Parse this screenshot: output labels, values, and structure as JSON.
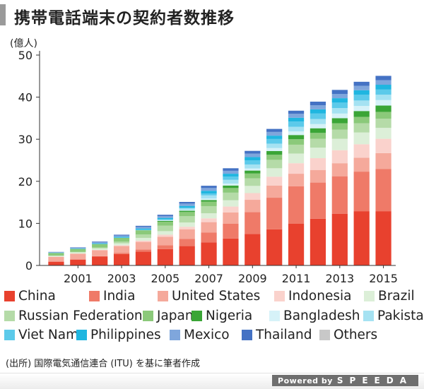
{
  "title": "携帯電話端末の契約者数推移",
  "source": "(出所) 国際電気通信連合 (ITU) を基に筆者作成",
  "footer": {
    "powered_by": "Powered by",
    "brand": "SPEEDA"
  },
  "legend_layout": [
    [
      "China",
      "India",
      "United States",
      "Indonesia",
      "Brazil"
    ],
    [
      "Russian Federation",
      "Japan",
      "Nigeria",
      "Bangladesh",
      "Pakistan"
    ],
    [
      "Viet Nam",
      "Philippines",
      "Mexico",
      "Thailand",
      "Others"
    ]
  ],
  "chart_data": {
    "type": "bar",
    "stacked": true,
    "title": "携帯電話端末の契約者数推移",
    "ylabel": "(億人)",
    "xlabel": "",
    "ylim": [
      0,
      50
    ],
    "yticks": [
      0,
      10,
      20,
      30,
      40,
      50
    ],
    "grid": false,
    "legend_position": "bottom",
    "categories": [
      "2000",
      "2001",
      "2002",
      "2003",
      "2004",
      "2005",
      "2006",
      "2007",
      "2008",
      "2009",
      "2010",
      "2011",
      "2012",
      "2013",
      "2014",
      "2015"
    ],
    "xtick_labels": [
      "2001",
      "2003",
      "2005",
      "2007",
      "2009",
      "2011",
      "2013",
      "2015"
    ],
    "series": [
      {
        "name": "China",
        "color": "#e8412e",
        "values": [
          0.9,
          1.4,
          2.1,
          2.7,
          3.3,
          3.9,
          4.6,
          5.5,
          6.4,
          7.5,
          8.6,
          9.9,
          11.1,
          12.3,
          12.9,
          12.9
        ]
      },
      {
        "name": "India",
        "color": "#ef7a68",
        "values": [
          0.05,
          0.07,
          0.1,
          0.3,
          0.5,
          0.9,
          1.7,
          2.3,
          3.5,
          5.2,
          7.5,
          8.9,
          8.6,
          8.9,
          9.4,
          10.0
        ]
      },
      {
        "name": "United States",
        "color": "#f5a99b",
        "values": [
          1.1,
          1.3,
          1.4,
          1.6,
          1.8,
          2.0,
          2.3,
          2.5,
          2.7,
          2.9,
          2.9,
          3.0,
          3.0,
          3.1,
          3.3,
          3.8
        ]
      },
      {
        "name": "Indonesia",
        "color": "#fad2cc",
        "values": [
          0.04,
          0.06,
          0.1,
          0.2,
          0.3,
          0.5,
          0.6,
          0.9,
          1.4,
          1.6,
          2.1,
          2.5,
          2.8,
          3.1,
          3.2,
          3.4
        ]
      },
      {
        "name": "Brazil",
        "color": "#dcefd8",
        "values": [
          0.2,
          0.3,
          0.35,
          0.45,
          0.65,
          0.85,
          1.0,
          1.2,
          1.5,
          1.7,
          2.0,
          2.3,
          2.5,
          2.7,
          2.8,
          2.6
        ]
      },
      {
        "name": "Russian Federation",
        "color": "#b5dba8",
        "values": [
          0.03,
          0.08,
          0.2,
          0.4,
          0.8,
          1.3,
          1.5,
          1.7,
          1.8,
          1.8,
          2.0,
          2.1,
          2.1,
          2.2,
          2.2,
          2.2
        ]
      },
      {
        "name": "Japan",
        "color": "#8bc97a",
        "values": [
          0.65,
          0.7,
          0.8,
          0.85,
          0.9,
          0.95,
          1.0,
          1.05,
          1.1,
          1.15,
          1.2,
          1.3,
          1.4,
          1.5,
          1.5,
          1.6
        ]
      },
      {
        "name": "Nigeria",
        "color": "#3aa536",
        "values": [
          0.0,
          0.02,
          0.03,
          0.05,
          0.1,
          0.2,
          0.3,
          0.4,
          0.6,
          0.7,
          0.9,
          1.0,
          1.1,
          1.2,
          1.4,
          1.5
        ]
      },
      {
        "name": "Bangladesh",
        "color": "#d6f2f8",
        "values": [
          0.0,
          0.0,
          0.01,
          0.01,
          0.03,
          0.1,
          0.2,
          0.35,
          0.45,
          0.5,
          0.7,
          0.85,
          1.0,
          1.1,
          1.2,
          1.3
        ]
      },
      {
        "name": "Pakistan",
        "color": "#a5e2f2",
        "values": [
          0.0,
          0.01,
          0.01,
          0.02,
          0.05,
          0.15,
          0.35,
          0.75,
          0.9,
          0.95,
          1.05,
          1.1,
          1.2,
          1.3,
          1.3,
          1.3
        ]
      },
      {
        "name": "Viet Nam",
        "color": "#5ccaea",
        "values": [
          0.01,
          0.01,
          0.02,
          0.03,
          0.05,
          0.1,
          0.2,
          0.45,
          0.75,
          1.0,
          1.1,
          1.25,
          1.3,
          1.3,
          1.35,
          1.2
        ]
      },
      {
        "name": "Philippines",
        "color": "#1fb6e0",
        "values": [
          0.06,
          0.1,
          0.15,
          0.2,
          0.3,
          0.35,
          0.4,
          0.65,
          0.7,
          0.75,
          0.8,
          0.9,
          1.0,
          1.05,
          1.1,
          1.15
        ]
      },
      {
        "name": "Mexico",
        "color": "#7fa6dc",
        "values": [
          0.15,
          0.2,
          0.25,
          0.3,
          0.38,
          0.45,
          0.55,
          0.65,
          0.7,
          0.82,
          0.88,
          0.93,
          0.98,
          1.02,
          1.03,
          1.07
        ]
      },
      {
        "name": "Thailand",
        "color": "#4472c4",
        "values": [
          0.03,
          0.07,
          0.15,
          0.2,
          0.26,
          0.3,
          0.4,
          0.54,
          0.6,
          0.66,
          0.72,
          0.75,
          0.85,
          0.95,
          0.97,
          1.04
        ]
      },
      {
        "name": "Others",
        "color": "#c8c8c8",
        "values": [
          0.0,
          0.0,
          0.0,
          0.0,
          0.0,
          0.0,
          0.0,
          0.0,
          0.0,
          0.0,
          0.0,
          0.0,
          0.0,
          0.0,
          0.0,
          0.0
        ]
      }
    ]
  }
}
